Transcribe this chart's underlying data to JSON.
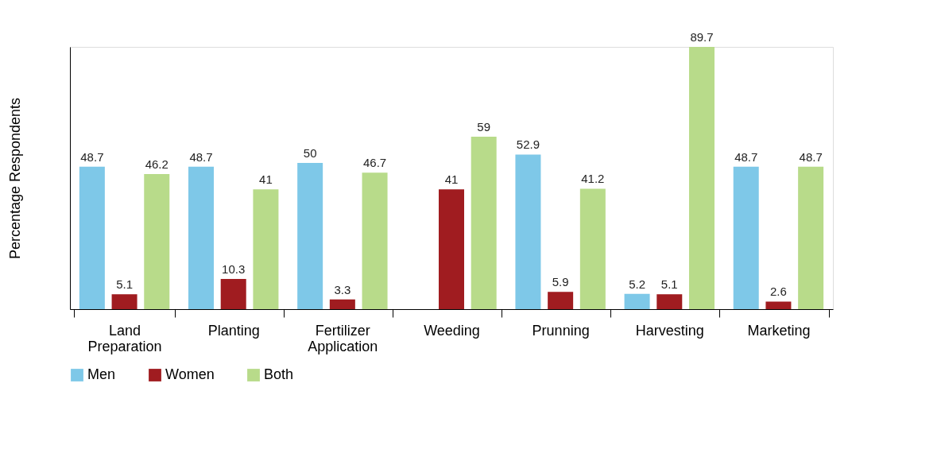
{
  "chart_data": {
    "type": "bar",
    "ylabel": "Percentage Respondents",
    "categories": [
      "Land Preparation",
      "Planting",
      "Fertilizer Application",
      "Weeding",
      "Prunning",
      "Harvesting",
      "Marketing"
    ],
    "series": [
      {
        "name": "Men",
        "color": "#7ec8e8",
        "values": [
          48.7,
          48.7,
          50,
          null,
          52.9,
          5.2,
          48.7
        ]
      },
      {
        "name": "Women",
        "color": "#a01c20",
        "values": [
          5.1,
          10.3,
          3.3,
          41,
          5.9,
          5.1,
          2.6
        ]
      },
      {
        "name": "Both",
        "color": "#b8db8a",
        "values": [
          46.2,
          41,
          46.7,
          59,
          41.2,
          89.7,
          48.7
        ]
      }
    ],
    "data_labels": true,
    "legend": "bottom",
    "grid": false
  }
}
